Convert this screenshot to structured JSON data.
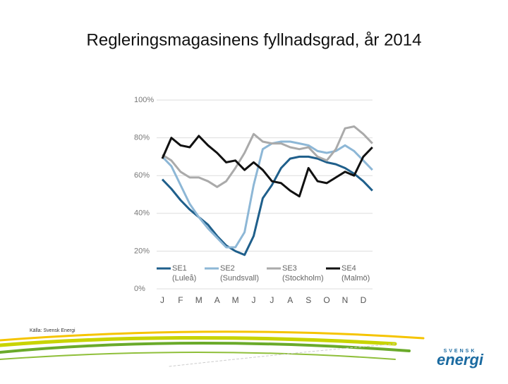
{
  "title": "Regleringsmagasinens fyllnadsgrad, år 2014",
  "source": "Källa: Svensk Energi",
  "logo": {
    "top": "SVENSK",
    "main": "energi"
  },
  "chart_data": {
    "type": "line",
    "categories": [
      "J",
      null,
      "F",
      null,
      "M",
      null,
      "A",
      null,
      "M",
      null,
      "J",
      null,
      "J",
      null,
      "A",
      null,
      "S",
      null,
      "O",
      null,
      "N",
      null,
      "D",
      null
    ],
    "ylim": [
      0,
      100
    ],
    "yticks": [
      {
        "value": 0,
        "label": "0%"
      },
      {
        "value": 20,
        "label": "20%"
      },
      {
        "value": 40,
        "label": "40%"
      },
      {
        "value": 60,
        "label": "60%"
      },
      {
        "value": 80,
        "label": "80%"
      },
      {
        "value": 100,
        "label": "100%"
      }
    ],
    "grid": true,
    "series": [
      {
        "name": "SE1",
        "sublabel": "(Luleå)",
        "color": "#1f5f8b",
        "values": [
          58,
          53,
          47,
          42,
          38,
          34,
          28,
          23,
          20,
          18,
          28,
          48,
          55,
          64,
          69,
          70,
          70,
          69,
          67,
          66,
          64,
          61,
          57,
          52
        ]
      },
      {
        "name": "SE2",
        "sublabel": "(Sundsvall)",
        "color": "#8db7d6",
        "values": [
          70,
          65,
          55,
          45,
          38,
          32,
          27,
          22,
          22,
          30,
          55,
          74,
          77,
          78,
          78,
          77,
          76,
          73,
          72,
          73,
          76,
          73,
          68,
          63
        ]
      },
      {
        "name": "SE3",
        "sublabel": "(Stockholm)",
        "color": "#aaaaaa",
        "values": [
          71,
          68,
          62,
          59,
          59,
          57,
          54,
          57,
          64,
          72,
          82,
          78,
          77,
          77,
          75,
          74,
          75,
          70,
          68,
          74,
          85,
          86,
          82,
          77
        ]
      },
      {
        "name": "SE4",
        "sublabel": "(Malmö)",
        "color": "#111111",
        "values": [
          69,
          80,
          76,
          75,
          81,
          76,
          72,
          67,
          68,
          63,
          67,
          63,
          57,
          56,
          52,
          49,
          64,
          57,
          56,
          59,
          62,
          60,
          70,
          75
        ]
      }
    ]
  }
}
